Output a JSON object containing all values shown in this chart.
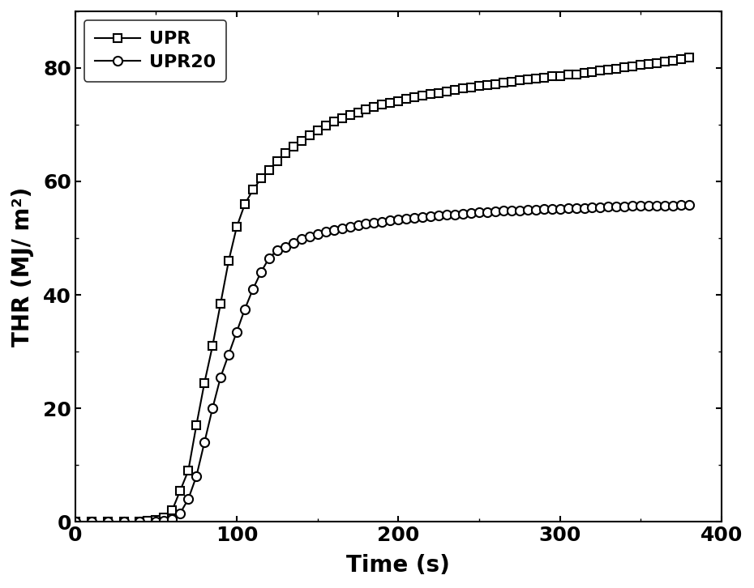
{
  "title": "",
  "xlabel": "Time (s)",
  "ylabel": "THR (MJ/ m²)",
  "xlim": [
    0,
    400
  ],
  "ylim": [
    0,
    90
  ],
  "xticks": [
    0,
    100,
    200,
    300,
    400
  ],
  "yticks": [
    0,
    20,
    40,
    60,
    80
  ],
  "legend_labels": [
    "UPR",
    "UPR20"
  ],
  "line_color": "#000000",
  "background_color": "#ffffff",
  "UPR_x": [
    0,
    10,
    20,
    30,
    40,
    45,
    50,
    55,
    60,
    65,
    70,
    75,
    80,
    85,
    90,
    95,
    100,
    105,
    110,
    115,
    120,
    125,
    130,
    135,
    140,
    145,
    150,
    155,
    160,
    165,
    170,
    175,
    180,
    185,
    190,
    195,
    200,
    205,
    210,
    215,
    220,
    225,
    230,
    235,
    240,
    245,
    250,
    255,
    260,
    265,
    270,
    275,
    280,
    285,
    290,
    295,
    300,
    305,
    310,
    315,
    320,
    325,
    330,
    335,
    340,
    345,
    350,
    355,
    360,
    365,
    370,
    375,
    380
  ],
  "UPR_y": [
    0,
    0,
    0,
    0,
    0,
    0.1,
    0.3,
    0.8,
    2.0,
    5.5,
    9.0,
    17.0,
    24.5,
    31.0,
    38.5,
    46.0,
    52.0,
    56.0,
    58.5,
    60.5,
    62.0,
    63.5,
    65.0,
    66.2,
    67.2,
    68.2,
    69.0,
    69.8,
    70.5,
    71.1,
    71.7,
    72.2,
    72.7,
    73.1,
    73.5,
    73.9,
    74.2,
    74.5,
    74.8,
    75.1,
    75.4,
    75.6,
    75.9,
    76.1,
    76.4,
    76.6,
    76.8,
    77.0,
    77.2,
    77.4,
    77.6,
    77.8,
    78.0,
    78.1,
    78.3,
    78.5,
    78.6,
    78.8,
    78.9,
    79.1,
    79.3,
    79.5,
    79.7,
    79.9,
    80.1,
    80.3,
    80.5,
    80.7,
    80.9,
    81.1,
    81.3,
    81.6,
    81.8
  ],
  "UPR20_x": [
    0,
    10,
    20,
    30,
    40,
    50,
    55,
    60,
    65,
    70,
    75,
    80,
    85,
    90,
    95,
    100,
    105,
    110,
    115,
    120,
    125,
    130,
    135,
    140,
    145,
    150,
    155,
    160,
    165,
    170,
    175,
    180,
    185,
    190,
    195,
    200,
    205,
    210,
    215,
    220,
    225,
    230,
    235,
    240,
    245,
    250,
    255,
    260,
    265,
    270,
    275,
    280,
    285,
    290,
    295,
    300,
    305,
    310,
    315,
    320,
    325,
    330,
    335,
    340,
    345,
    350,
    355,
    360,
    365,
    370,
    375,
    380
  ],
  "UPR20_y": [
    0,
    0,
    0,
    0,
    0,
    0,
    0.2,
    0.5,
    1.5,
    4.0,
    8.0,
    14.0,
    20.0,
    25.5,
    29.5,
    33.5,
    37.5,
    41.0,
    44.0,
    46.5,
    47.8,
    48.5,
    49.2,
    49.8,
    50.3,
    50.7,
    51.1,
    51.4,
    51.7,
    52.0,
    52.3,
    52.5,
    52.7,
    52.9,
    53.1,
    53.3,
    53.4,
    53.6,
    53.7,
    53.9,
    54.0,
    54.1,
    54.2,
    54.3,
    54.4,
    54.5,
    54.6,
    54.7,
    54.8,
    54.85,
    54.9,
    55.0,
    55.05,
    55.1,
    55.15,
    55.2,
    55.25,
    55.3,
    55.35,
    55.4,
    55.45,
    55.5,
    55.55,
    55.6,
    55.65,
    55.7,
    55.72,
    55.74,
    55.76,
    55.78,
    55.8,
    55.82
  ]
}
